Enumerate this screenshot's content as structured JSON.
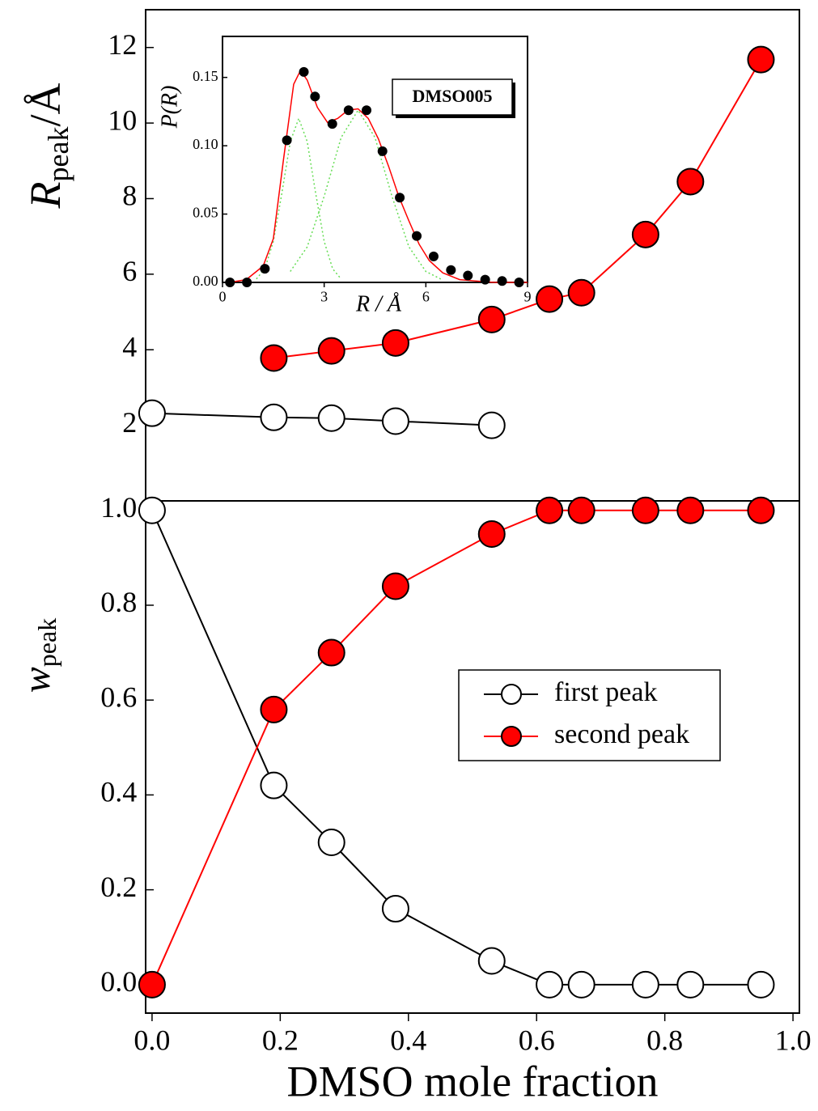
{
  "chart_data": [
    {
      "type": "line",
      "ylabel_parts": [
        "R",
        "peak",
        "/Å"
      ],
      "xlim": [
        -0.01,
        1.01
      ],
      "ylim": [
        0,
        13
      ],
      "yticks": [
        2,
        4,
        6,
        8,
        10,
        12
      ],
      "series": [
        {
          "color": "#000000",
          "marker": "circle",
          "marker_fill": "#ffffff",
          "linestyle": "solid",
          "x": [
            0,
            0.19,
            0.28,
            0.38,
            0.53
          ],
          "values": [
            2.32,
            2.21,
            2.19,
            2.11,
            2.0
          ]
        },
        {
          "color": "#ff0000",
          "marker": "circle",
          "marker_fill": "#ff0000",
          "linestyle": "solid",
          "x": [
            0.19,
            0.28,
            0.38,
            0.53,
            0.62,
            0.67,
            0.77,
            0.84,
            0.95
          ],
          "values": [
            3.78,
            3.97,
            4.18,
            4.8,
            5.34,
            5.51,
            7.05,
            8.45,
            11.68
          ]
        }
      ]
    },
    {
      "type": "line",
      "ylabel_parts": [
        "w",
        "peak"
      ],
      "xlabel": "DMSO mole fraction",
      "xlim": [
        -0.01,
        1.01
      ],
      "ylim": [
        -0.06,
        1.02
      ],
      "xticks": [
        {
          "value": 0,
          "label": "0.0"
        },
        0.2,
        0.4,
        0.6,
        0.8,
        {
          "value": 1,
          "label": "1.0"
        }
      ],
      "yticks": [
        {
          "value": 0,
          "label": "0.0"
        },
        0.2,
        0.4,
        0.6,
        0.8,
        {
          "value": 1,
          "label": "1.0"
        }
      ],
      "legend": "center-right",
      "series": [
        {
          "name": "first peak",
          "color": "#000000",
          "marker": "circle",
          "marker_fill": "#ffffff",
          "linestyle": "solid",
          "x": [
            0,
            0.19,
            0.28,
            0.38,
            0.53,
            0.62,
            0.67,
            0.77,
            0.84,
            0.95
          ],
          "values": [
            1.0,
            0.42,
            0.3,
            0.16,
            0.05,
            0,
            0,
            0,
            0,
            0
          ]
        },
        {
          "name": "second peak",
          "color": "#ff0000",
          "marker": "circle",
          "marker_fill": "#ff0000",
          "linestyle": "solid",
          "x": [
            0,
            0.19,
            0.28,
            0.38,
            0.53,
            0.62,
            0.67,
            0.77,
            0.84,
            0.95
          ],
          "values": [
            0,
            0.58,
            0.7,
            0.84,
            0.95,
            1,
            1,
            1,
            1,
            1
          ]
        }
      ]
    },
    {
      "type": "line",
      "xlabel": "R / Å",
      "ylabel": "P(R)",
      "annotation": "DMSO005",
      "xlim": [
        0,
        9
      ],
      "ylim": [
        0,
        0.18
      ],
      "xticks": [
        0,
        3,
        6,
        9
      ],
      "yticks": [
        {
          "value": 0,
          "label": "0.00"
        },
        {
          "value": 0.05,
          "label": "0.05"
        },
        {
          "value": 0.1,
          "label": "0.10"
        },
        {
          "value": 0.15,
          "label": "0.15"
        }
      ],
      "series": [
        {
          "color": "#66dd55",
          "marker": "none",
          "linestyle": "dotted",
          "x": [
            1.0,
            1.25,
            1.5,
            1.75,
            2.0,
            2.25,
            2.5,
            2.75,
            3.0,
            3.25,
            3.5
          ],
          "values": [
            0.0025,
            0.01,
            0.03,
            0.065,
            0.103,
            0.12,
            0.103,
            0.065,
            0.03,
            0.01,
            0.0025
          ]
        },
        {
          "color": "#66dd55",
          "marker": "none",
          "linestyle": "dotted",
          "x": [
            2.0,
            2.5,
            3.0,
            3.5,
            4.0,
            4.5,
            5.0,
            5.5,
            6.0,
            6.5
          ],
          "values": [
            0.008,
            0.026,
            0.063,
            0.106,
            0.126,
            0.106,
            0.063,
            0.026,
            0.008,
            0.0017
          ]
        },
        {
          "color": "#ff0000",
          "marker": "none",
          "linestyle": "solid",
          "x": [
            0.2,
            0.7,
            1.2,
            1.5,
            1.8,
            2.1,
            2.3,
            2.5,
            2.8,
            3.1,
            3.4,
            3.7,
            4.0,
            4.3,
            4.6,
            4.9,
            5.2,
            5.5,
            5.8,
            6.1,
            6.5,
            7,
            7.5,
            8,
            9
          ],
          "values": [
            0,
            0.002,
            0.012,
            0.032,
            0.09,
            0.145,
            0.155,
            0.148,
            0.128,
            0.117,
            0.12,
            0.126,
            0.127,
            0.12,
            0.105,
            0.085,
            0.063,
            0.045,
            0.028,
            0.016,
            0.007,
            0.002,
            0.001,
            0,
            0
          ]
        },
        {
          "color": "#000000",
          "marker": "circle",
          "marker_fill": "#000000",
          "linestyle": "none",
          "x": [
            0.22,
            0.72,
            1.25,
            1.9,
            2.4,
            2.73,
            3.24,
            3.72,
            4.25,
            4.72,
            5.23,
            5.73,
            6.23,
            6.74,
            7.24,
            7.75,
            8.25,
            8.75
          ],
          "values": [
            0,
            0,
            0.01,
            0.104,
            0.154,
            0.136,
            0.116,
            0.126,
            0.126,
            0.096,
            0.062,
            0.034,
            0.019,
            0.009,
            0.005,
            0.002,
            0.001,
            0
          ]
        }
      ]
    }
  ]
}
